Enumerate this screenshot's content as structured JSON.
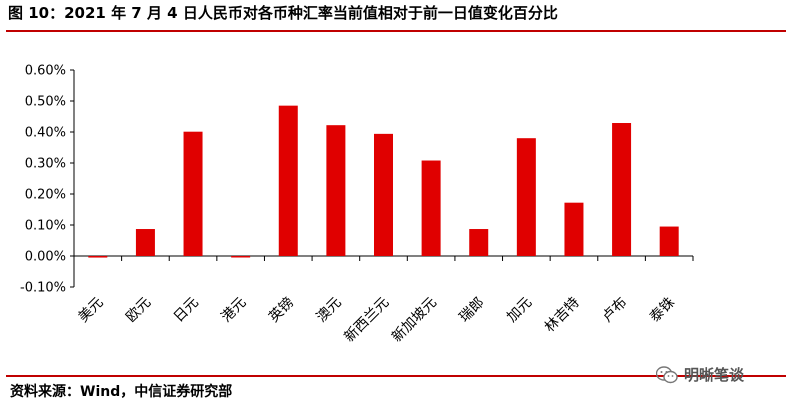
{
  "figure": {
    "title": "图 10：2021 年 7 月 4 日人民币对各币种汇率当前值相对于前一日值变化百分比",
    "source": "资料来源：Wind，中信证券研究部",
    "watermark": "明晰笔谈"
  },
  "colors": {
    "bar": "#e00000",
    "rule": "#c00000",
    "axis": "#000000"
  },
  "chart_data": {
    "type": "bar",
    "title": "图 10：2021 年 7 月 4 日人民币对各币种汇率当前值相对于前一日值变化百分比",
    "xlabel": "",
    "ylabel": "",
    "categories": [
      "美元",
      "欧元",
      "日元",
      "港元",
      "英镑",
      "澳元",
      "新西兰元",
      "新加坡元",
      "瑞郎",
      "加元",
      "林吉特",
      "卢布",
      "泰铢"
    ],
    "values": [
      -0.005,
      0.087,
      0.401,
      -0.002,
      0.485,
      0.422,
      0.394,
      0.308,
      0.087,
      0.38,
      0.172,
      0.429,
      0.095
    ],
    "ylim": [
      -0.1,
      0.6
    ],
    "yticks": [
      -0.1,
      0.0,
      0.1,
      0.2,
      0.3,
      0.4,
      0.5,
      0.6
    ],
    "ytick_labels": [
      "-0.10%",
      "0.00%",
      "0.10%",
      "0.20%",
      "0.30%",
      "0.40%",
      "0.50%",
      "0.60%"
    ],
    "grid": false,
    "legend": "none"
  }
}
